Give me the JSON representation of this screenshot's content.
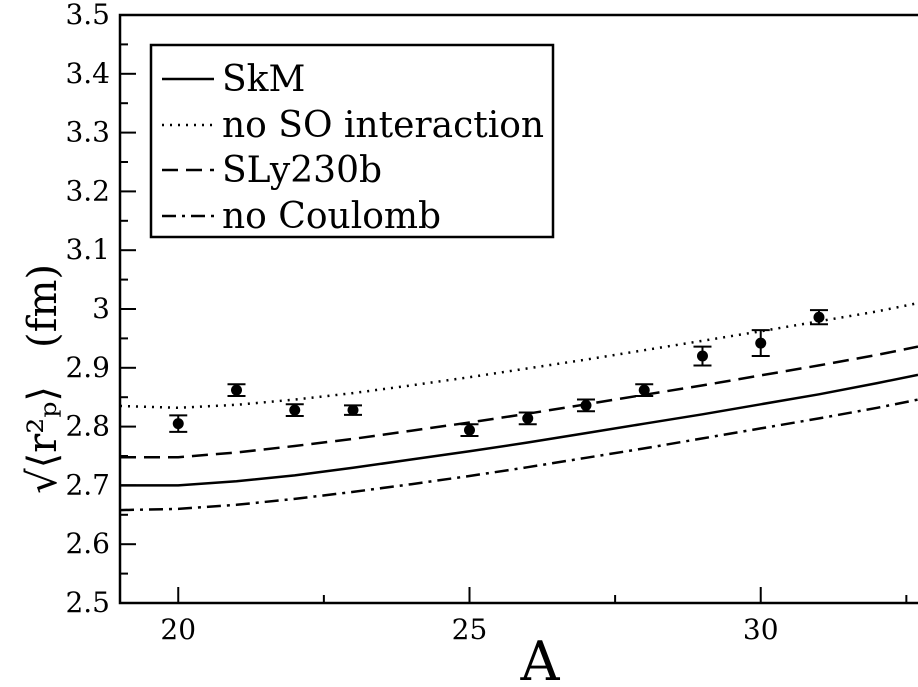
{
  "chart_data": {
    "type": "line",
    "title": "",
    "xlabel": "A",
    "ylabel": "(fm)",
    "ylabel_expression": "√⟨r²ₚ⟩",
    "xlim": [
      19,
      32.7
    ],
    "ylim": [
      2.5,
      3.5
    ],
    "x_ticks": [
      20,
      25,
      30
    ],
    "y_ticks": [
      2.5,
      2.6,
      2.7,
      2.8,
      2.9,
      3.0,
      3.1,
      3.2,
      3.3,
      3.4,
      3.5
    ],
    "x_tick_labels": [
      "20",
      "25",
      "30"
    ],
    "y_tick_labels": [
      "2.5",
      "2.6",
      "2.7",
      "2.8",
      "2.9",
      "3",
      "3.1",
      "3.2",
      "3.3",
      "3.4",
      "3.5"
    ],
    "grid": false,
    "legend_position": "top-left",
    "series": [
      {
        "name": "SkM",
        "style": "solid",
        "x": [
          19,
          20,
          21,
          22,
          23,
          24,
          25,
          26,
          27,
          28,
          29,
          30,
          31,
          32,
          32.7
        ],
        "y": [
          2.7,
          2.7,
          2.707,
          2.717,
          2.73,
          2.744,
          2.758,
          2.773,
          2.789,
          2.805,
          2.821,
          2.838,
          2.855,
          2.874,
          2.888
        ]
      },
      {
        "name": "no SO interaction",
        "style": "dotted",
        "x": [
          19,
          20,
          21,
          22,
          23,
          24,
          25,
          26,
          27,
          28,
          29,
          30,
          31,
          32,
          32.7
        ],
        "y": [
          2.835,
          2.832,
          2.837,
          2.846,
          2.857,
          2.87,
          2.884,
          2.899,
          2.914,
          2.93,
          2.946,
          2.962,
          2.979,
          2.996,
          3.01
        ]
      },
      {
        "name": "SLy230b",
        "style": "dashed",
        "x": [
          19,
          20,
          21,
          22,
          23,
          24,
          25,
          26,
          27,
          28,
          29,
          30,
          31,
          32,
          32.7
        ],
        "y": [
          2.748,
          2.748,
          2.756,
          2.767,
          2.779,
          2.793,
          2.807,
          2.822,
          2.838,
          2.854,
          2.87,
          2.887,
          2.904,
          2.922,
          2.936
        ]
      },
      {
        "name": "no Coulomb",
        "style": "dashdot",
        "x": [
          19,
          20,
          21,
          22,
          23,
          24,
          25,
          26,
          27,
          28,
          29,
          30,
          31,
          32,
          32.7
        ],
        "y": [
          2.658,
          2.66,
          2.667,
          2.677,
          2.689,
          2.702,
          2.716,
          2.731,
          2.747,
          2.763,
          2.78,
          2.797,
          2.814,
          2.832,
          2.846
        ]
      }
    ],
    "experimental": {
      "x": [
        20,
        21,
        22,
        23,
        25,
        26,
        27,
        28,
        29,
        30,
        31
      ],
      "y": [
        2.805,
        2.862,
        2.828,
        2.828,
        2.794,
        2.814,
        2.836,
        2.862,
        2.92,
        2.942,
        2.986
      ],
      "err": [
        0.014,
        0.01,
        0.01,
        0.008,
        0.01,
        0.01,
        0.01,
        0.01,
        0.016,
        0.022,
        0.012
      ]
    }
  }
}
